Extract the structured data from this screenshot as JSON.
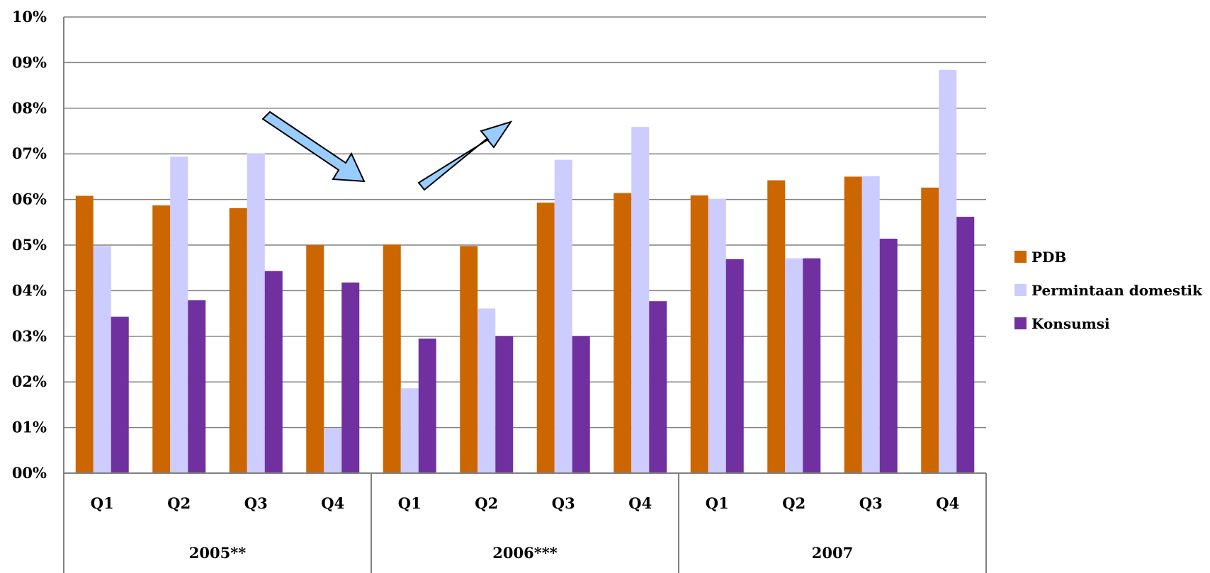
{
  "chart_data": {
    "type": "bar",
    "title": "",
    "xlabel": "",
    "ylabel": "",
    "ylim": [
      0,
      10
    ],
    "y_ticks": [
      "00%",
      "01%",
      "02%",
      "03%",
      "04%",
      "05%",
      "06%",
      "07%",
      "08%",
      "09%",
      "10%"
    ],
    "grid": true,
    "legend_position": "right",
    "groups": [
      {
        "label": "2005**",
        "quarters": [
          "Q1",
          "Q2",
          "Q3",
          "Q4"
        ]
      },
      {
        "label": "2006***",
        "quarters": [
          "Q1",
          "Q2",
          "Q3",
          "Q4"
        ]
      },
      {
        "label": "2007",
        "quarters": [
          "Q1",
          "Q2",
          "Q3",
          "Q4"
        ]
      }
    ],
    "series": [
      {
        "name": "PDB",
        "color": "#cc6600",
        "values": [
          6.08,
          5.87,
          5.81,
          5.0,
          5.01,
          4.98,
          5.93,
          6.14,
          6.09,
          6.42,
          6.5,
          6.26
        ]
      },
      {
        "name": "Permintaan domestik",
        "color": "#ccccff",
        "values": [
          4.98,
          6.94,
          7.01,
          0.98,
          1.86,
          3.61,
          6.87,
          7.59,
          6.01,
          4.71,
          6.51,
          8.84
        ]
      },
      {
        "name": "Konsumsi",
        "color": "#7030a0",
        "values": [
          3.43,
          3.79,
          4.43,
          4.18,
          2.95,
          3.0,
          3.0,
          3.77,
          4.69,
          4.71,
          5.14,
          5.62
        ]
      }
    ],
    "annotations": [
      {
        "shape": "arrow",
        "direction": "down-right",
        "color": "#99ccff"
      },
      {
        "shape": "arrow",
        "direction": "up-right",
        "color": "#99ccff"
      }
    ]
  }
}
